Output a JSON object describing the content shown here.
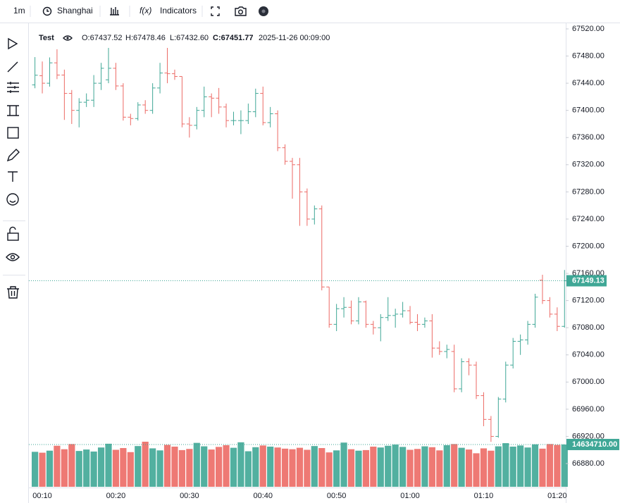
{
  "toolbar": {
    "interval": "1m",
    "timezone": "Shanghai",
    "indicators": "Indicators",
    "fx": "f(x)"
  },
  "legend": {
    "name": "Test",
    "open": "O:67437.52",
    "high": "H:67478.46",
    "low": "L:67432.60",
    "close": "C:67451.77",
    "time": "2025-11-26 00:09:00"
  },
  "chart_data": {
    "type": "ohlc",
    "up_color": "#3fa796",
    "down_color": "#ec6a65",
    "x": [
      null,
      "00:10",
      null,
      null,
      null,
      null,
      null,
      null,
      null,
      null,
      null,
      "00:20",
      null,
      null,
      null,
      null,
      null,
      null,
      null,
      null,
      null,
      "00:30",
      null,
      null,
      null,
      null,
      null,
      null,
      null,
      null,
      null,
      "00:40",
      null,
      null,
      null,
      null,
      null,
      null,
      null,
      null,
      null,
      "00:50",
      null,
      null,
      null,
      null,
      null,
      null,
      null,
      null,
      null,
      "01:00",
      null,
      null,
      null,
      null,
      null,
      null,
      null,
      null,
      null,
      "01:10",
      null,
      null,
      null,
      null,
      null,
      null,
      null,
      null,
      null,
      "01:20",
      null
    ],
    "open": [
      67437.52,
      67451,
      67440,
      67470,
      67452,
      67425,
      67400,
      67412,
      67415,
      67440,
      67445,
      67462,
      67436,
      67390,
      67388,
      67408,
      67400,
      67433,
      67455,
      67454,
      67450,
      67380,
      67378,
      67400,
      67420,
      67418,
      67405,
      67385,
      67385,
      67385,
      67398,
      67425,
      67382,
      67395,
      67345,
      67325,
      67320,
      67280,
      67240,
      67255,
      67140,
      67085,
      67108,
      67110,
      67090,
      67118,
      67085,
      67080,
      67095,
      67098,
      67100,
      67105,
      67088,
      67085,
      67090,
      67050,
      67045,
      67045,
      66990,
      67030,
      67025,
      66980,
      66945,
      66920,
      66975,
      67025,
      67060,
      67062,
      67085,
      67150,
      67120,
      67100,
      67082
    ],
    "high": [
      67478.46,
      67472,
      67478,
      67490,
      67460,
      67430,
      67418,
      67425,
      67452,
      67470,
      67492,
      67470,
      67440,
      67395,
      67412,
      67415,
      67440,
      67470,
      67492,
      67460,
      67450,
      67390,
      67405,
      67435,
      67425,
      67433,
      67410,
      67398,
      67400,
      67410,
      67432,
      67435,
      67405,
      67400,
      67350,
      67330,
      67330,
      67285,
      67260,
      67260,
      67140,
      67115,
      67125,
      67120,
      67125,
      67120,
      67090,
      67100,
      67125,
      67108,
      67118,
      67112,
      67100,
      67095,
      67100,
      67060,
      67055,
      67055,
      67035,
      67035,
      67030,
      66985,
      66950,
      66978,
      67030,
      67065,
      67070,
      67090,
      67130,
      67158,
      67125,
      67110,
      67165
    ],
    "low": [
      67432.6,
      67425,
      67435,
      67446,
      67386,
      67380,
      67375,
      67405,
      67405,
      67430,
      67440,
      67430,
      67385,
      67378,
      67385,
      67395,
      67395,
      67425,
      67440,
      67445,
      67375,
      67360,
      67372,
      67390,
      67390,
      67395,
      67375,
      67378,
      67365,
      67380,
      67390,
      67378,
      67375,
      67340,
      67320,
      67270,
      67230,
      67230,
      67232,
      67135,
      67080,
      67075,
      67095,
      67085,
      67085,
      67080,
      67070,
      67060,
      67090,
      67080,
      67095,
      67085,
      67075,
      67080,
      67036,
      67040,
      67035,
      66985,
      66985,
      67010,
      66975,
      66935,
      66912,
      66918,
      66970,
      67020,
      67040,
      67055,
      67080,
      67115,
      67095,
      67075,
      67080
    ],
    "close": [
      67451.77,
      67440,
      67470,
      67452,
      67425,
      67400,
      67412,
      67415,
      67440,
      67462,
      67462,
      67436,
      67390,
      67388,
      67408,
      67400,
      67433,
      67455,
      67454,
      67450,
      67380,
      67378,
      67400,
      67420,
      67418,
      67405,
      67385,
      67385,
      67385,
      67398,
      67425,
      67382,
      67395,
      67345,
      67325,
      67320,
      67280,
      67240,
      67255,
      67140,
      67085,
      67108,
      67110,
      67090,
      67118,
      67085,
      67080,
      67095,
      67098,
      67100,
      67105,
      67088,
      67085,
      67090,
      67050,
      67045,
      67048,
      66990,
      67030,
      67025,
      66980,
      66945,
      66920,
      66975,
      67025,
      67060,
      67062,
      67085,
      67125,
      67120,
      67100,
      67082,
      67149.13
    ],
    "volume": [
      12100000,
      11800000,
      12500000,
      14200000,
      13000000,
      14800000,
      12400000,
      12900000,
      12200000,
      13600000,
      14900000,
      12800000,
      13400000,
      12000000,
      14100000,
      15600000,
      13300000,
      12600000,
      14500000,
      13900000,
      12700000,
      13100000,
      15200000,
      14000000,
      12900000,
      13800000,
      14400000,
      13500000,
      15400000,
      12300000,
      13700000,
      14300000,
      13900000,
      13600000,
      13200000,
      13000000,
      13500000,
      12800000,
      14100000,
      13400000,
      11900000,
      12600000,
      15300000,
      13000000,
      12500000,
      12700000,
      13900000,
      13600000,
      14200000,
      14600000,
      13800000,
      12800000,
      13100000,
      14000000,
      13700000,
      12600000,
      14400000,
      14800000,
      13500000,
      12900000,
      11600000,
      13300000,
      12500000,
      14000000,
      15100000,
      13900000,
      14300000,
      13600000,
      14700000,
      13200000,
      14800000,
      14500000,
      14634710
    ],
    "last_close_label": "67149.13",
    "last_volume_label": "14634710.00",
    "ylim": [
      66880,
      67520
    ],
    "yticks": [
      {
        "value": 66880,
        "label": "66880.00"
      },
      {
        "value": 66920,
        "label": "66920.00"
      },
      {
        "value": 66960,
        "label": "66960.00"
      },
      {
        "value": 67000,
        "label": "67000.00"
      },
      {
        "value": 67040,
        "label": "67040.00"
      },
      {
        "value": 67080,
        "label": "67080.00"
      },
      {
        "value": 67120,
        "label": "67120.00"
      },
      {
        "value": 67160,
        "label": "67160.00"
      },
      {
        "value": 67200,
        "label": "67200.00"
      },
      {
        "value": 67240,
        "label": "67240.00"
      },
      {
        "value": 67280,
        "label": "67280.00"
      },
      {
        "value": 67320,
        "label": "67320.00"
      },
      {
        "value": 67360,
        "label": "67360.00"
      },
      {
        "value": 67400,
        "label": "67400.00"
      },
      {
        "value": 67440,
        "label": "67440.00"
      },
      {
        "value": 67480,
        "label": "67480.00"
      },
      {
        "value": 67520,
        "label": "67520.00"
      }
    ]
  }
}
